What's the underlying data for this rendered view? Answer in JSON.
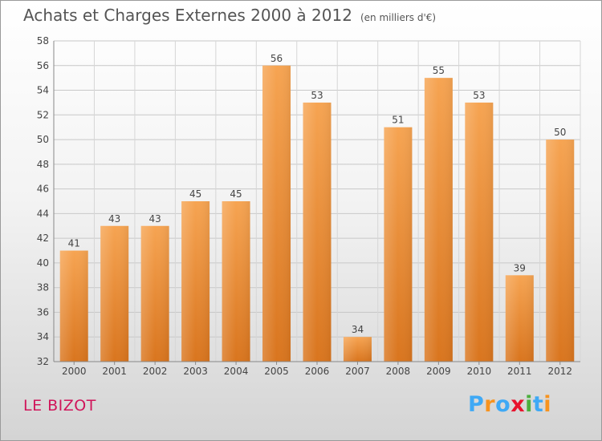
{
  "header": {
    "title": "Achats et Charges Externes 2000 à 2012",
    "unit": "(en milliers d'€)"
  },
  "location": "LE BIZOT",
  "logo": {
    "letters": [
      "P",
      "r",
      "o",
      "x",
      "i",
      "t",
      "i"
    ],
    "colors": [
      "#3fa9f5",
      "#f7931e",
      "#3fa9f5",
      "#e8132d",
      "#4caf3e",
      "#3fa9f5",
      "#f7931e"
    ]
  },
  "chart_data": {
    "type": "bar",
    "categories": [
      "2000",
      "2001",
      "2002",
      "2003",
      "2004",
      "2005",
      "2006",
      "2007",
      "2008",
      "2009",
      "2010",
      "2011",
      "2012"
    ],
    "values": [
      41,
      43,
      43,
      45,
      45,
      56,
      53,
      34,
      51,
      55,
      53,
      39,
      50
    ],
    "title": "Achats et Charges Externes 2000 à 2012",
    "subtitle": "(en milliers d'€)",
    "xlabel": "",
    "ylabel": "",
    "ylim": [
      32,
      58
    ],
    "yticks": [
      32,
      34,
      36,
      38,
      40,
      42,
      44,
      46,
      48,
      50,
      52,
      54,
      56,
      58
    ],
    "grid": true,
    "bar_color": "#f0923a",
    "data_labels": true
  }
}
